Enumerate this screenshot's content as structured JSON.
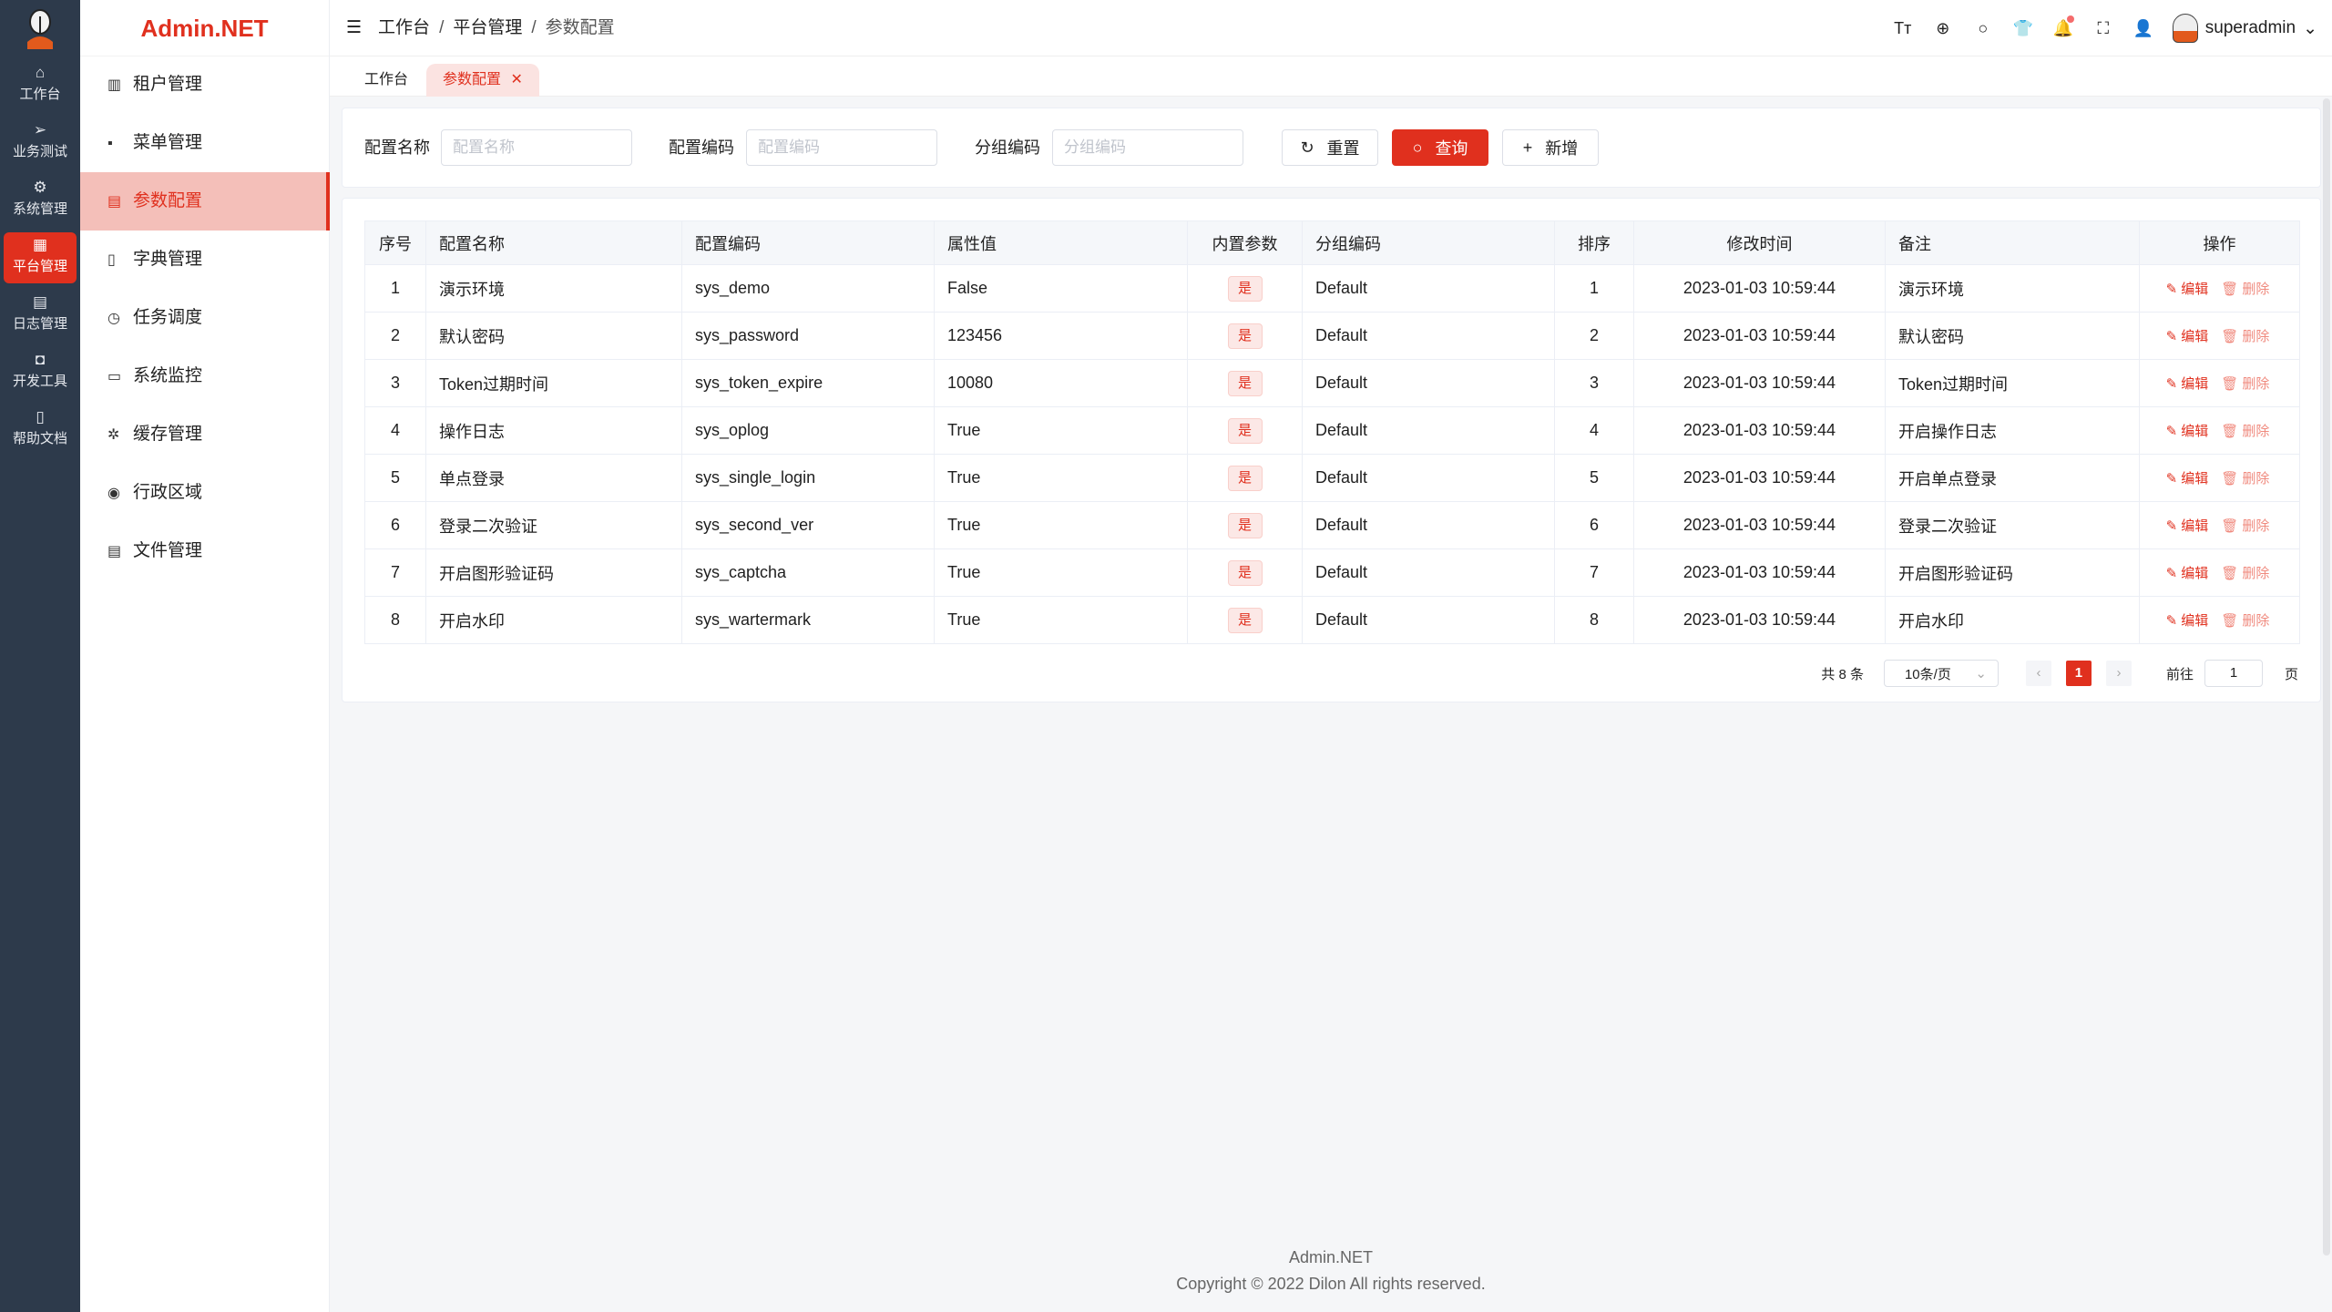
{
  "colors": {
    "accent": "#e0301e",
    "rail": "#2d3a4b"
  },
  "rail": [
    {
      "icon": "home-icon",
      "glyph": "⌂",
      "label": "工作台"
    },
    {
      "icon": "send-icon",
      "glyph": "➢",
      "label": "业务测试"
    },
    {
      "icon": "gear-icon",
      "glyph": "⚙",
      "label": "系统管理"
    },
    {
      "icon": "grid-icon",
      "glyph": "▦",
      "label": "平台管理",
      "active": true
    },
    {
      "icon": "document-icon",
      "glyph": "▤",
      "label": "日志管理"
    },
    {
      "icon": "chip-icon",
      "glyph": "◘",
      "label": "开发工具"
    },
    {
      "icon": "book-icon",
      "glyph": "▯",
      "label": "帮助文档"
    }
  ],
  "brand": "Admin.NET",
  "sidebar": [
    {
      "icon": "building-icon",
      "glyph": "▥",
      "label": "租户管理"
    },
    {
      "icon": "menu-grid-icon",
      "glyph": "▪",
      "label": "菜单管理"
    },
    {
      "icon": "config-icon",
      "glyph": "▤",
      "label": "参数配置",
      "active": true
    },
    {
      "icon": "dictionary-icon",
      "glyph": "▯",
      "label": "字典管理"
    },
    {
      "icon": "alarm-clock-icon",
      "glyph": "◷",
      "label": "任务调度"
    },
    {
      "icon": "monitor-icon",
      "glyph": "▭",
      "label": "系统监控"
    },
    {
      "icon": "cache-icon",
      "glyph": "✲",
      "label": "缓存管理"
    },
    {
      "icon": "location-icon",
      "glyph": "◉",
      "label": "行政区域"
    },
    {
      "icon": "file-icon",
      "glyph": "▤",
      "label": "文件管理"
    }
  ],
  "breadcrumb": [
    "工作台",
    "平台管理",
    "参数配置"
  ],
  "header": {
    "icons": [
      "font-size-icon",
      "language-icon",
      "search-icon",
      "theme-shirt-icon",
      "bell-icon",
      "fullscreen-icon",
      "user-icon"
    ],
    "glyphs": [
      "Tт",
      "⊕",
      "○",
      "👕",
      "🔔",
      "⛶",
      "👤"
    ],
    "username": "superadmin"
  },
  "tabs": [
    "工作台",
    "参数配置"
  ],
  "search": {
    "name_label": "配置名称",
    "name_placeholder": "配置名称",
    "code_label": "配置编码",
    "code_placeholder": "配置编码",
    "group_label": "分组编码",
    "group_placeholder": "分组编码",
    "reset": "重置",
    "query": "查询",
    "add": "新增"
  },
  "table": {
    "columns": [
      "序号",
      "配置名称",
      "配置编码",
      "属性值",
      "内置参数",
      "分组编码",
      "排序",
      "修改时间",
      "备注",
      "操作"
    ],
    "rows": [
      {
        "idx": "1",
        "name": "演示环境",
        "code": "sys_demo",
        "value": "False",
        "builtin": "是",
        "group": "Default",
        "order": "1",
        "time": "2023-01-03 10:59:44",
        "remark": "演示环境"
      },
      {
        "idx": "2",
        "name": "默认密码",
        "code": "sys_password",
        "value": "123456",
        "builtin": "是",
        "group": "Default",
        "order": "2",
        "time": "2023-01-03 10:59:44",
        "remark": "默认密码"
      },
      {
        "idx": "3",
        "name": "Token过期时间",
        "code": "sys_token_expire",
        "value": "10080",
        "builtin": "是",
        "group": "Default",
        "order": "3",
        "time": "2023-01-03 10:59:44",
        "remark": "Token过期时间"
      },
      {
        "idx": "4",
        "name": "操作日志",
        "code": "sys_oplog",
        "value": "True",
        "builtin": "是",
        "group": "Default",
        "order": "4",
        "time": "2023-01-03 10:59:44",
        "remark": "开启操作日志"
      },
      {
        "idx": "5",
        "name": "单点登录",
        "code": "sys_single_login",
        "value": "True",
        "builtin": "是",
        "group": "Default",
        "order": "5",
        "time": "2023-01-03 10:59:44",
        "remark": "开启单点登录"
      },
      {
        "idx": "6",
        "name": "登录二次验证",
        "code": "sys_second_ver",
        "value": "True",
        "builtin": "是",
        "group": "Default",
        "order": "6",
        "time": "2023-01-03 10:59:44",
        "remark": "登录二次验证"
      },
      {
        "idx": "7",
        "name": "开启图形验证码",
        "code": "sys_captcha",
        "value": "True",
        "builtin": "是",
        "group": "Default",
        "order": "7",
        "time": "2023-01-03 10:59:44",
        "remark": "开启图形验证码"
      },
      {
        "idx": "8",
        "name": "开启水印",
        "code": "sys_wartermark",
        "value": "True",
        "builtin": "是",
        "group": "Default",
        "order": "8",
        "time": "2023-01-03 10:59:44",
        "remark": "开启水印"
      }
    ],
    "edit": "编辑",
    "delete": "删除"
  },
  "pagination": {
    "total": "共 8 条",
    "page_size": "10条/页",
    "current": "1",
    "goto": "前往",
    "goto_value": "1",
    "page_unit": "页"
  },
  "footer": {
    "name": "Admin.NET",
    "copyright": "Copyright © 2022 Dilon All rights reserved."
  }
}
